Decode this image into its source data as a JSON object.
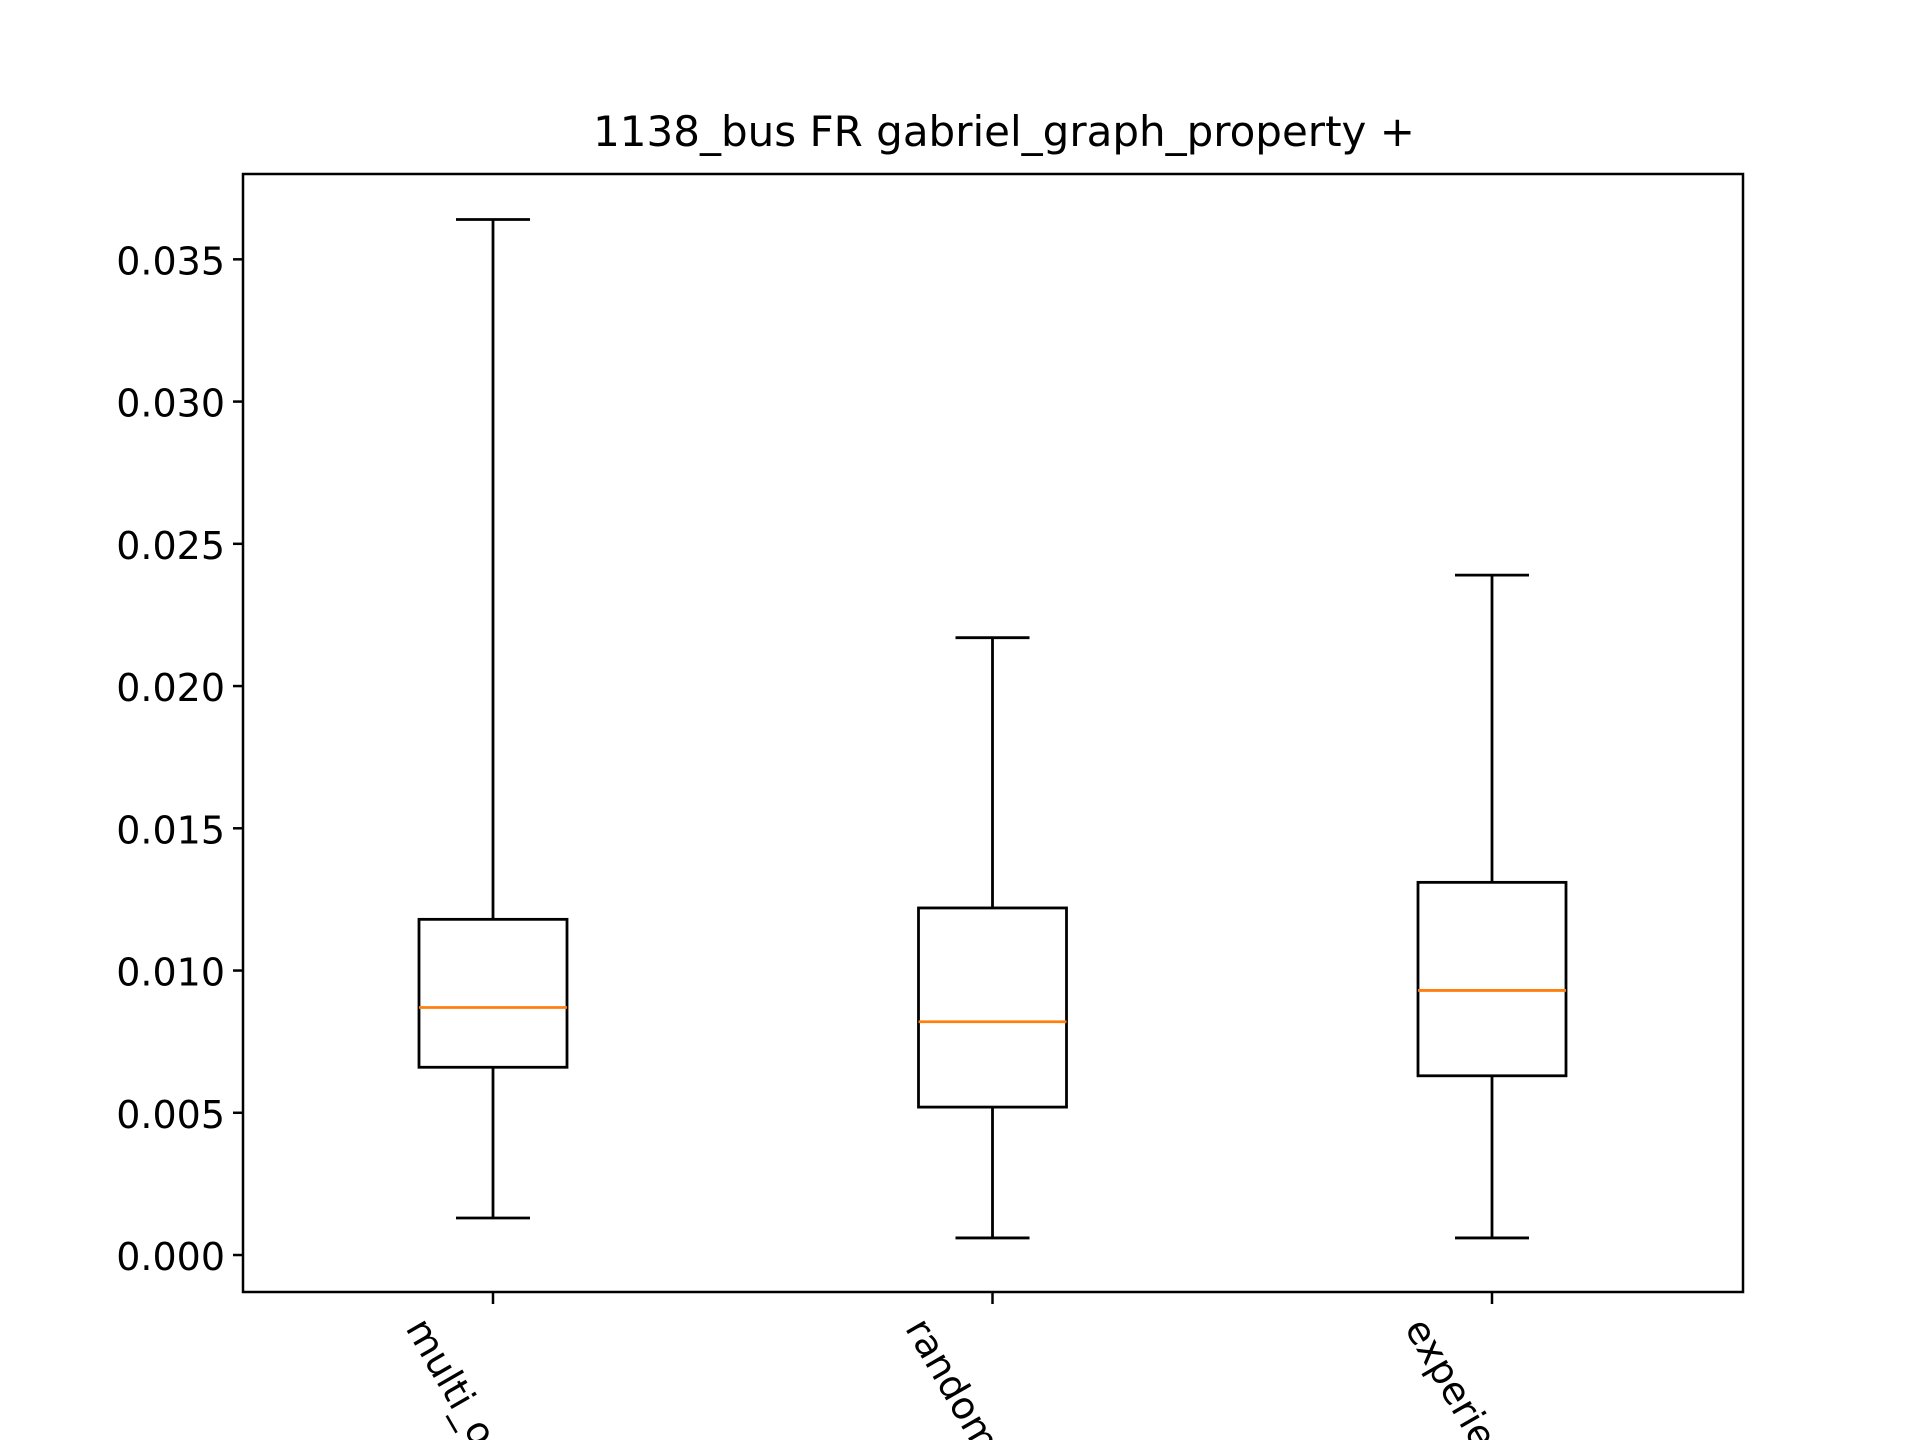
{
  "chart_data": {
    "type": "box",
    "title": "1138_bus FR gabriel_graph_property +",
    "xlabel": "",
    "ylabel": "",
    "ylim": [
      -0.0013,
      0.038
    ],
    "yticks": [
      0.0,
      0.005,
      0.01,
      0.015,
      0.02,
      0.025,
      0.03,
      0.035
    ],
    "ytick_labels": [
      "0.000",
      "0.005",
      "0.010",
      "0.015",
      "0.020",
      "0.025",
      "0.030",
      "0.035"
    ],
    "categories": [
      "multi_o",
      "random",
      "experie"
    ],
    "series": [
      {
        "category": "multi_o",
        "whisker_low": 0.0013,
        "q1": 0.0066,
        "median": 0.0087,
        "q3": 0.0118,
        "whisker_high": 0.0364
      },
      {
        "category": "random",
        "whisker_low": 0.0006,
        "q1": 0.0052,
        "median": 0.0082,
        "q3": 0.0122,
        "whisker_high": 0.0217
      },
      {
        "category": "experie",
        "whisker_low": 0.0006,
        "q1": 0.0063,
        "median": 0.0093,
        "q3": 0.0131,
        "whisker_high": 0.0239
      }
    ],
    "grid": false,
    "legend": "none",
    "colors": {
      "box": "#000000",
      "median": "#ff7f0e",
      "axes": "#000000",
      "background": "#ffffff"
    }
  }
}
